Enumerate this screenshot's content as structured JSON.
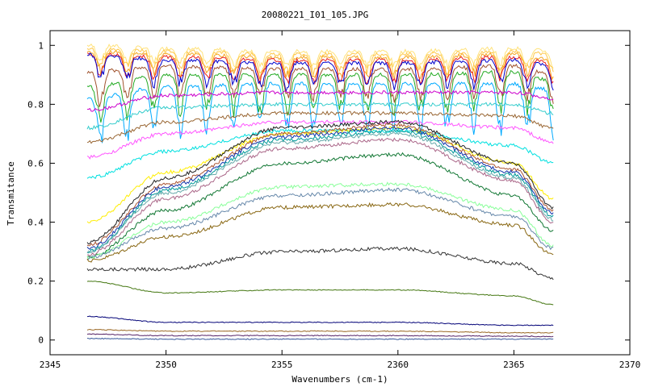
{
  "chart_data": {
    "type": "line",
    "title": "20080221_I01_105.JPG",
    "xlabel": "Wavenumbers (cm-1)",
    "ylabel": "Transmitance",
    "xlim": [
      2345,
      2370
    ],
    "ylim": [
      -0.05,
      1.05
    ],
    "x_ticks": [
      "2345",
      "2350",
      "2355",
      "2360",
      "2365",
      "2370"
    ],
    "y_ticks": [
      "0",
      "0.2",
      "0.4",
      "0.6",
      "0.8",
      "1"
    ],
    "x_range": [
      2346.6,
      2366.7
    ],
    "grid": false,
    "legend": "none",
    "series_envelopes": [
      {
        "color": "#ffe27a",
        "x": [
          2346.6,
          2350,
          2355,
          2360,
          2365,
          2366.7
        ],
        "y": [
          1.0,
          0.99,
          0.98,
          0.98,
          0.99,
          0.98
        ]
      },
      {
        "color": "#ffc84a",
        "x": [
          2346.6,
          2350,
          2355,
          2360,
          2365,
          2366.7
        ],
        "y": [
          0.99,
          0.98,
          0.97,
          0.97,
          0.98,
          0.97
        ]
      },
      {
        "color": "#f5a623",
        "x": [
          2346.6,
          2350,
          2355,
          2360,
          2365,
          2366.7
        ],
        "y": [
          0.98,
          0.97,
          0.96,
          0.96,
          0.97,
          0.95
        ]
      },
      {
        "color": "#e91e1e",
        "x": [
          2346.6,
          2350,
          2355,
          2360,
          2365,
          2366.7
        ],
        "y": [
          0.97,
          0.96,
          0.95,
          0.95,
          0.96,
          0.94
        ]
      },
      {
        "color": "#0000cc",
        "x": [
          2346.6,
          2350,
          2355,
          2360,
          2365,
          2366.7
        ],
        "y": [
          0.97,
          0.95,
          0.94,
          0.94,
          0.95,
          0.93
        ]
      },
      {
        "color": "#a0522d",
        "x": [
          2346.6,
          2350,
          2355,
          2360,
          2365,
          2366.7
        ],
        "y": [
          0.91,
          0.93,
          0.92,
          0.92,
          0.93,
          0.9
        ]
      },
      {
        "color": "#22aa22",
        "x": [
          2346.6,
          2350,
          2355,
          2360,
          2365,
          2366.7
        ],
        "y": [
          0.86,
          0.9,
          0.9,
          0.9,
          0.91,
          0.88
        ]
      },
      {
        "color": "#00aaff",
        "x": [
          2346.6,
          2350,
          2355,
          2360,
          2365,
          2366.7
        ],
        "y": [
          0.82,
          0.86,
          0.87,
          0.87,
          0.87,
          0.85
        ]
      },
      {
        "color": "#cc00cc",
        "x": [
          2346.6,
          2350,
          2355,
          2360,
          2365,
          2366.7
        ],
        "y": [
          0.78,
          0.83,
          0.84,
          0.84,
          0.84,
          0.82
        ]
      },
      {
        "color": "#33cccc",
        "x": [
          2346.6,
          2350,
          2355,
          2360,
          2365,
          2366.7
        ],
        "y": [
          0.72,
          0.79,
          0.8,
          0.8,
          0.8,
          0.77
        ]
      },
      {
        "color": "#996633",
        "x": [
          2346.6,
          2350,
          2355,
          2360,
          2365,
          2366.7
        ],
        "y": [
          0.67,
          0.74,
          0.77,
          0.77,
          0.76,
          0.72
        ]
      },
      {
        "color": "#ff55ff",
        "x": [
          2346.6,
          2350,
          2355,
          2360,
          2365,
          2366.7
        ],
        "y": [
          0.62,
          0.7,
          0.74,
          0.74,
          0.72,
          0.67
        ]
      },
      {
        "color": "#00e0e0",
        "x": [
          2346.6,
          2350,
          2355,
          2360,
          2365,
          2366.7
        ],
        "y": [
          0.55,
          0.64,
          0.71,
          0.71,
          0.66,
          0.6
        ]
      },
      {
        "color": "#ffee00",
        "x": [
          2346.6,
          2350,
          2355,
          2360,
          2365,
          2366.7
        ],
        "y": [
          0.4,
          0.57,
          0.7,
          0.72,
          0.6,
          0.48
        ]
      },
      {
        "color": "#222222",
        "x": [
          2346.6,
          2350,
          2355,
          2360,
          2365,
          2366.7
        ],
        "y": [
          0.33,
          0.55,
          0.72,
          0.74,
          0.6,
          0.45
        ]
      },
      {
        "color": "#aa5533",
        "x": [
          2346.6,
          2350,
          2355,
          2360,
          2365,
          2366.7
        ],
        "y": [
          0.32,
          0.53,
          0.7,
          0.73,
          0.58,
          0.44
        ]
      },
      {
        "color": "#1133aa",
        "x": [
          2346.6,
          2350,
          2355,
          2360,
          2365,
          2366.7
        ],
        "y": [
          0.31,
          0.52,
          0.69,
          0.72,
          0.57,
          0.43
        ]
      },
      {
        "color": "#009999",
        "x": [
          2346.6,
          2350,
          2355,
          2360,
          2365,
          2366.7
        ],
        "y": [
          0.3,
          0.51,
          0.68,
          0.71,
          0.56,
          0.42
        ]
      },
      {
        "color": "#66aaaa",
        "x": [
          2346.6,
          2350,
          2355,
          2360,
          2365,
          2366.7
        ],
        "y": [
          0.3,
          0.5,
          0.67,
          0.7,
          0.55,
          0.41
        ]
      },
      {
        "color": "#aa6688",
        "x": [
          2346.6,
          2350,
          2355,
          2360,
          2365,
          2366.7
        ],
        "y": [
          0.29,
          0.48,
          0.65,
          0.68,
          0.54,
          0.4
        ]
      },
      {
        "color": "#117733",
        "x": [
          2346.6,
          2350,
          2355,
          2360,
          2365,
          2366.7
        ],
        "y": [
          0.28,
          0.44,
          0.6,
          0.63,
          0.49,
          0.37
        ]
      },
      {
        "color": "#88ff99",
        "x": [
          2346.6,
          2350,
          2355,
          2360,
          2365,
          2366.7
        ],
        "y": [
          0.28,
          0.4,
          0.52,
          0.53,
          0.44,
          0.32
        ]
      },
      {
        "color": "#6688aa",
        "x": [
          2346.6,
          2350,
          2355,
          2360,
          2365,
          2366.7
        ],
        "y": [
          0.28,
          0.38,
          0.49,
          0.51,
          0.42,
          0.31
        ]
      },
      {
        "color": "#886611",
        "x": [
          2346.6,
          2350,
          2355,
          2360,
          2365,
          2366.7
        ],
        "y": [
          0.27,
          0.35,
          0.45,
          0.46,
          0.39,
          0.29
        ]
      },
      {
        "color": "#333333",
        "x": [
          2346.6,
          2350,
          2355,
          2360,
          2365,
          2366.7
        ],
        "y": [
          0.24,
          0.24,
          0.3,
          0.31,
          0.26,
          0.21
        ]
      },
      {
        "color": "#447711",
        "x": [
          2346.6,
          2350,
          2355,
          2360,
          2365,
          2366.7
        ],
        "y": [
          0.2,
          0.16,
          0.17,
          0.17,
          0.15,
          0.12
        ]
      },
      {
        "color": "#000077",
        "x": [
          2346.6,
          2350,
          2355,
          2360,
          2365,
          2366.7
        ],
        "y": [
          0.08,
          0.06,
          0.06,
          0.06,
          0.05,
          0.05
        ]
      },
      {
        "color": "#996622",
        "x": [
          2346.6,
          2350,
          2355,
          2360,
          2365,
          2366.7
        ],
        "y": [
          0.035,
          0.03,
          0.03,
          0.03,
          0.025,
          0.025
        ]
      },
      {
        "color": "#552266",
        "x": [
          2346.6,
          2350,
          2355,
          2360,
          2365,
          2366.7
        ],
        "y": [
          0.02,
          0.015,
          0.015,
          0.015,
          0.013,
          0.012
        ]
      },
      {
        "color": "#335599",
        "x": [
          2346.6,
          2350,
          2355,
          2360,
          2365,
          2366.7
        ],
        "y": [
          0.005,
          0.003,
          0.003,
          0.003,
          0.003,
          0.003
        ]
      }
    ]
  }
}
